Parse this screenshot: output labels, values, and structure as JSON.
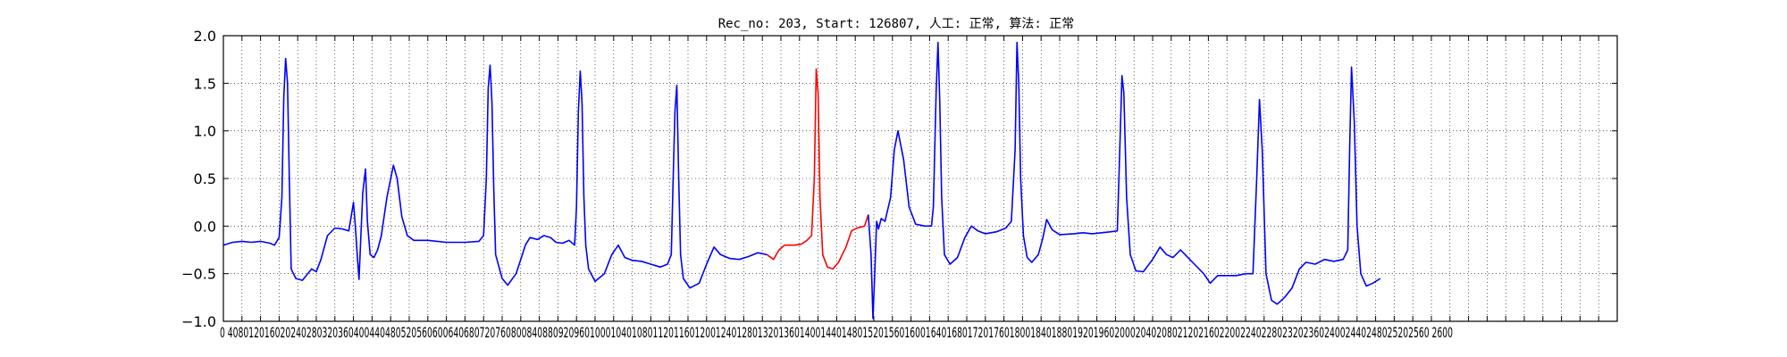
{
  "chart_data": {
    "type": "line",
    "title": "Rec_no: 203, Start: 126807, 人工: 正常, 算法: 正常",
    "xlabel": "",
    "ylabel": "",
    "xlim": [
      0,
      1500
    ],
    "ylim": [
      -1.0,
      2.0
    ],
    "grid": true,
    "y_ticks": [
      -1.0,
      -0.5,
      0.0,
      0.5,
      1.0,
      1.5,
      2.0
    ],
    "y_tick_labels": [
      "−1.0",
      "−0.5",
      "0.0",
      "0.5",
      "1.0",
      "1.5",
      "2.0"
    ],
    "x_tick_step": 20,
    "x_tick_labels_visible": "0 4080120160202402803203604004404805205606006406807207608008408809209601000104010801120116012001240128013201360140014401480152015601600164016801720176018001840188019201960200020402080212021602200224022802320236024002440248025202560 2600",
    "series": [
      {
        "color": "#0000ff",
        "x_range": [
          0,
          1320
        ],
        "values": [
          [
            0,
            -0.2
          ],
          [
            10,
            -0.17
          ],
          [
            20,
            -0.16
          ],
          [
            30,
            -0.17
          ],
          [
            40,
            -0.16
          ],
          [
            50,
            -0.18
          ],
          [
            55,
            -0.2
          ],
          [
            60,
            -0.12
          ],
          [
            63,
            0.3
          ],
          [
            65,
            1.35
          ],
          [
            67,
            1.76
          ],
          [
            69,
            1.5
          ],
          [
            71,
            0.5
          ],
          [
            73,
            -0.45
          ],
          [
            78,
            -0.55
          ],
          [
            85,
            -0.57
          ],
          [
            95,
            -0.45
          ],
          [
            100,
            -0.48
          ],
          [
            105,
            -0.35
          ],
          [
            112,
            -0.1
          ],
          [
            120,
            -0.02
          ],
          [
            128,
            -0.03
          ],
          [
            135,
            -0.05
          ],
          [
            140,
            0.25
          ],
          [
            142,
            0.0
          ],
          [
            144,
            -0.3
          ],
          [
            146,
            -0.56
          ],
          [
            148,
            -0.1
          ],
          [
            150,
            0.35
          ],
          [
            153,
            0.6
          ],
          [
            155,
            0.05
          ],
          [
            158,
            -0.3
          ],
          [
            162,
            -0.33
          ],
          [
            166,
            -0.25
          ],
          [
            170,
            -0.1
          ],
          [
            176,
            0.3
          ],
          [
            183,
            0.64
          ],
          [
            187,
            0.5
          ],
          [
            192,
            0.1
          ],
          [
            198,
            -0.1
          ],
          [
            205,
            -0.15
          ],
          [
            220,
            -0.15
          ],
          [
            240,
            -0.17
          ],
          [
            260,
            -0.17
          ],
          [
            275,
            -0.16
          ],
          [
            280,
            -0.1
          ],
          [
            283,
            0.5
          ],
          [
            285,
            1.45
          ],
          [
            287,
            1.69
          ],
          [
            289,
            1.3
          ],
          [
            291,
            0.4
          ],
          [
            293,
            -0.3
          ],
          [
            300,
            -0.55
          ],
          [
            306,
            -0.62
          ],
          [
            315,
            -0.5
          ],
          [
            325,
            -0.2
          ],
          [
            330,
            -0.12
          ],
          [
            338,
            -0.14
          ],
          [
            345,
            -0.1
          ],
          [
            352,
            -0.12
          ],
          [
            358,
            -0.17
          ],
          [
            365,
            -0.18
          ],
          [
            372,
            -0.15
          ],
          [
            378,
            -0.2
          ],
          [
            380,
            0.2
          ],
          [
            382,
            1.2
          ],
          [
            384,
            1.63
          ],
          [
            386,
            1.3
          ],
          [
            388,
            0.3
          ],
          [
            390,
            -0.2
          ],
          [
            393,
            -0.45
          ],
          [
            400,
            -0.58
          ],
          [
            410,
            -0.5
          ],
          [
            418,
            -0.3
          ],
          [
            425,
            -0.2
          ],
          [
            432,
            -0.33
          ],
          [
            440,
            -0.36
          ],
          [
            450,
            -0.37
          ],
          [
            460,
            -0.4
          ],
          [
            470,
            -0.43
          ],
          [
            478,
            -0.4
          ],
          [
            482,
            -0.3
          ],
          [
            484,
            0.5
          ],
          [
            486,
            1.2
          ],
          [
            488,
            1.48
          ],
          [
            490,
            0.5
          ],
          [
            492,
            -0.3
          ],
          [
            495,
            -0.55
          ],
          [
            502,
            -0.65
          ],
          [
            512,
            -0.6
          ],
          [
            520,
            -0.4
          ],
          [
            528,
            -0.22
          ],
          [
            535,
            -0.3
          ],
          [
            545,
            -0.34
          ],
          [
            555,
            -0.35
          ],
          [
            565,
            -0.32
          ],
          [
            575,
            -0.28
          ],
          [
            585,
            -0.3
          ]
        ]
      },
      {
        "color": "#ff0000",
        "x_range": [
          585,
          695
        ],
        "values": [
          [
            585,
            -0.3
          ],
          [
            592,
            -0.35
          ],
          [
            598,
            -0.25
          ],
          [
            604,
            -0.2
          ],
          [
            614,
            -0.2
          ],
          [
            622,
            -0.19
          ],
          [
            628,
            -0.15
          ],
          [
            633,
            -0.1
          ],
          [
            636,
            0.5
          ],
          [
            638,
            1.65
          ],
          [
            640,
            1.4
          ],
          [
            642,
            0.3
          ],
          [
            645,
            -0.3
          ],
          [
            650,
            -0.43
          ],
          [
            656,
            -0.45
          ],
          [
            662,
            -0.38
          ],
          [
            670,
            -0.22
          ],
          [
            676,
            -0.05
          ],
          [
            682,
            -0.02
          ],
          [
            690,
            0.0
          ],
          [
            694,
            0.12
          ]
        ]
      },
      {
        "color": "#0000ff",
        "x_range": [
          694,
          1320
        ],
        "values": [
          [
            694,
            0.12
          ],
          [
            697,
            -0.3
          ],
          [
            699,
            -0.97
          ],
          [
            701,
            -0.5
          ],
          [
            703,
            0.05
          ],
          [
            705,
            -0.03
          ],
          [
            708,
            0.08
          ],
          [
            712,
            0.05
          ],
          [
            718,
            0.3
          ],
          [
            722,
            0.8
          ],
          [
            726,
            1.0
          ],
          [
            732,
            0.7
          ],
          [
            738,
            0.2
          ],
          [
            745,
            0.02
          ],
          [
            755,
            0.0
          ],
          [
            762,
            0.0
          ],
          [
            764,
            0.2
          ],
          [
            767,
            1.4
          ],
          [
            769,
            1.93
          ],
          [
            771,
            1.3
          ],
          [
            773,
            0.3
          ],
          [
            776,
            -0.3
          ],
          [
            782,
            -0.4
          ],
          [
            790,
            -0.33
          ],
          [
            798,
            -0.12
          ],
          [
            805,
            0.0
          ],
          [
            812,
            -0.05
          ],
          [
            820,
            -0.08
          ],
          [
            832,
            -0.06
          ],
          [
            842,
            -0.02
          ],
          [
            848,
            0.05
          ],
          [
            852,
            0.8
          ],
          [
            854,
            1.93
          ],
          [
            856,
            1.5
          ],
          [
            858,
            0.5
          ],
          [
            861,
            -0.1
          ],
          [
            865,
            -0.33
          ],
          [
            870,
            -0.38
          ],
          [
            877,
            -0.3
          ],
          [
            882,
            -0.12
          ],
          [
            886,
            0.07
          ],
          [
            892,
            -0.04
          ],
          [
            900,
            -0.09
          ],
          [
            915,
            -0.08
          ],
          [
            925,
            -0.07
          ],
          [
            935,
            -0.08
          ],
          [
            945,
            -0.07
          ],
          [
            955,
            -0.06
          ],
          [
            962,
            -0.05
          ],
          [
            964,
            0.6
          ],
          [
            967,
            1.58
          ],
          [
            969,
            1.4
          ],
          [
            972,
            0.3
          ],
          [
            976,
            -0.3
          ],
          [
            982,
            -0.47
          ],
          [
            990,
            -0.48
          ],
          [
            1000,
            -0.35
          ],
          [
            1008,
            -0.22
          ],
          [
            1015,
            -0.3
          ],
          [
            1022,
            -0.33
          ],
          [
            1030,
            -0.25
          ],
          [
            1035,
            -0.3
          ],
          [
            1045,
            -0.4
          ],
          [
            1055,
            -0.5
          ],
          [
            1062,
            -0.6
          ],
          [
            1070,
            -0.52
          ],
          [
            1080,
            -0.52
          ],
          [
            1090,
            -0.52
          ],
          [
            1100,
            -0.5
          ],
          [
            1108,
            -0.5
          ],
          [
            1112,
            0.5
          ],
          [
            1115,
            1.33
          ],
          [
            1118,
            0.8
          ],
          [
            1122,
            -0.5
          ],
          [
            1128,
            -0.78
          ],
          [
            1134,
            -0.82
          ],
          [
            1142,
            -0.75
          ],
          [
            1150,
            -0.65
          ],
          [
            1158,
            -0.45
          ],
          [
            1165,
            -0.38
          ],
          [
            1175,
            -0.4
          ],
          [
            1185,
            -0.35
          ],
          [
            1195,
            -0.37
          ],
          [
            1205,
            -0.35
          ],
          [
            1210,
            -0.25
          ],
          [
            1212,
            0.8
          ],
          [
            1214,
            1.67
          ],
          [
            1217,
            1.1
          ],
          [
            1220,
            0.0
          ],
          [
            1224,
            -0.5
          ],
          [
            1230,
            -0.63
          ],
          [
            1237,
            -0.6
          ],
          [
            1245,
            -0.55
          ]
        ]
      }
    ]
  }
}
